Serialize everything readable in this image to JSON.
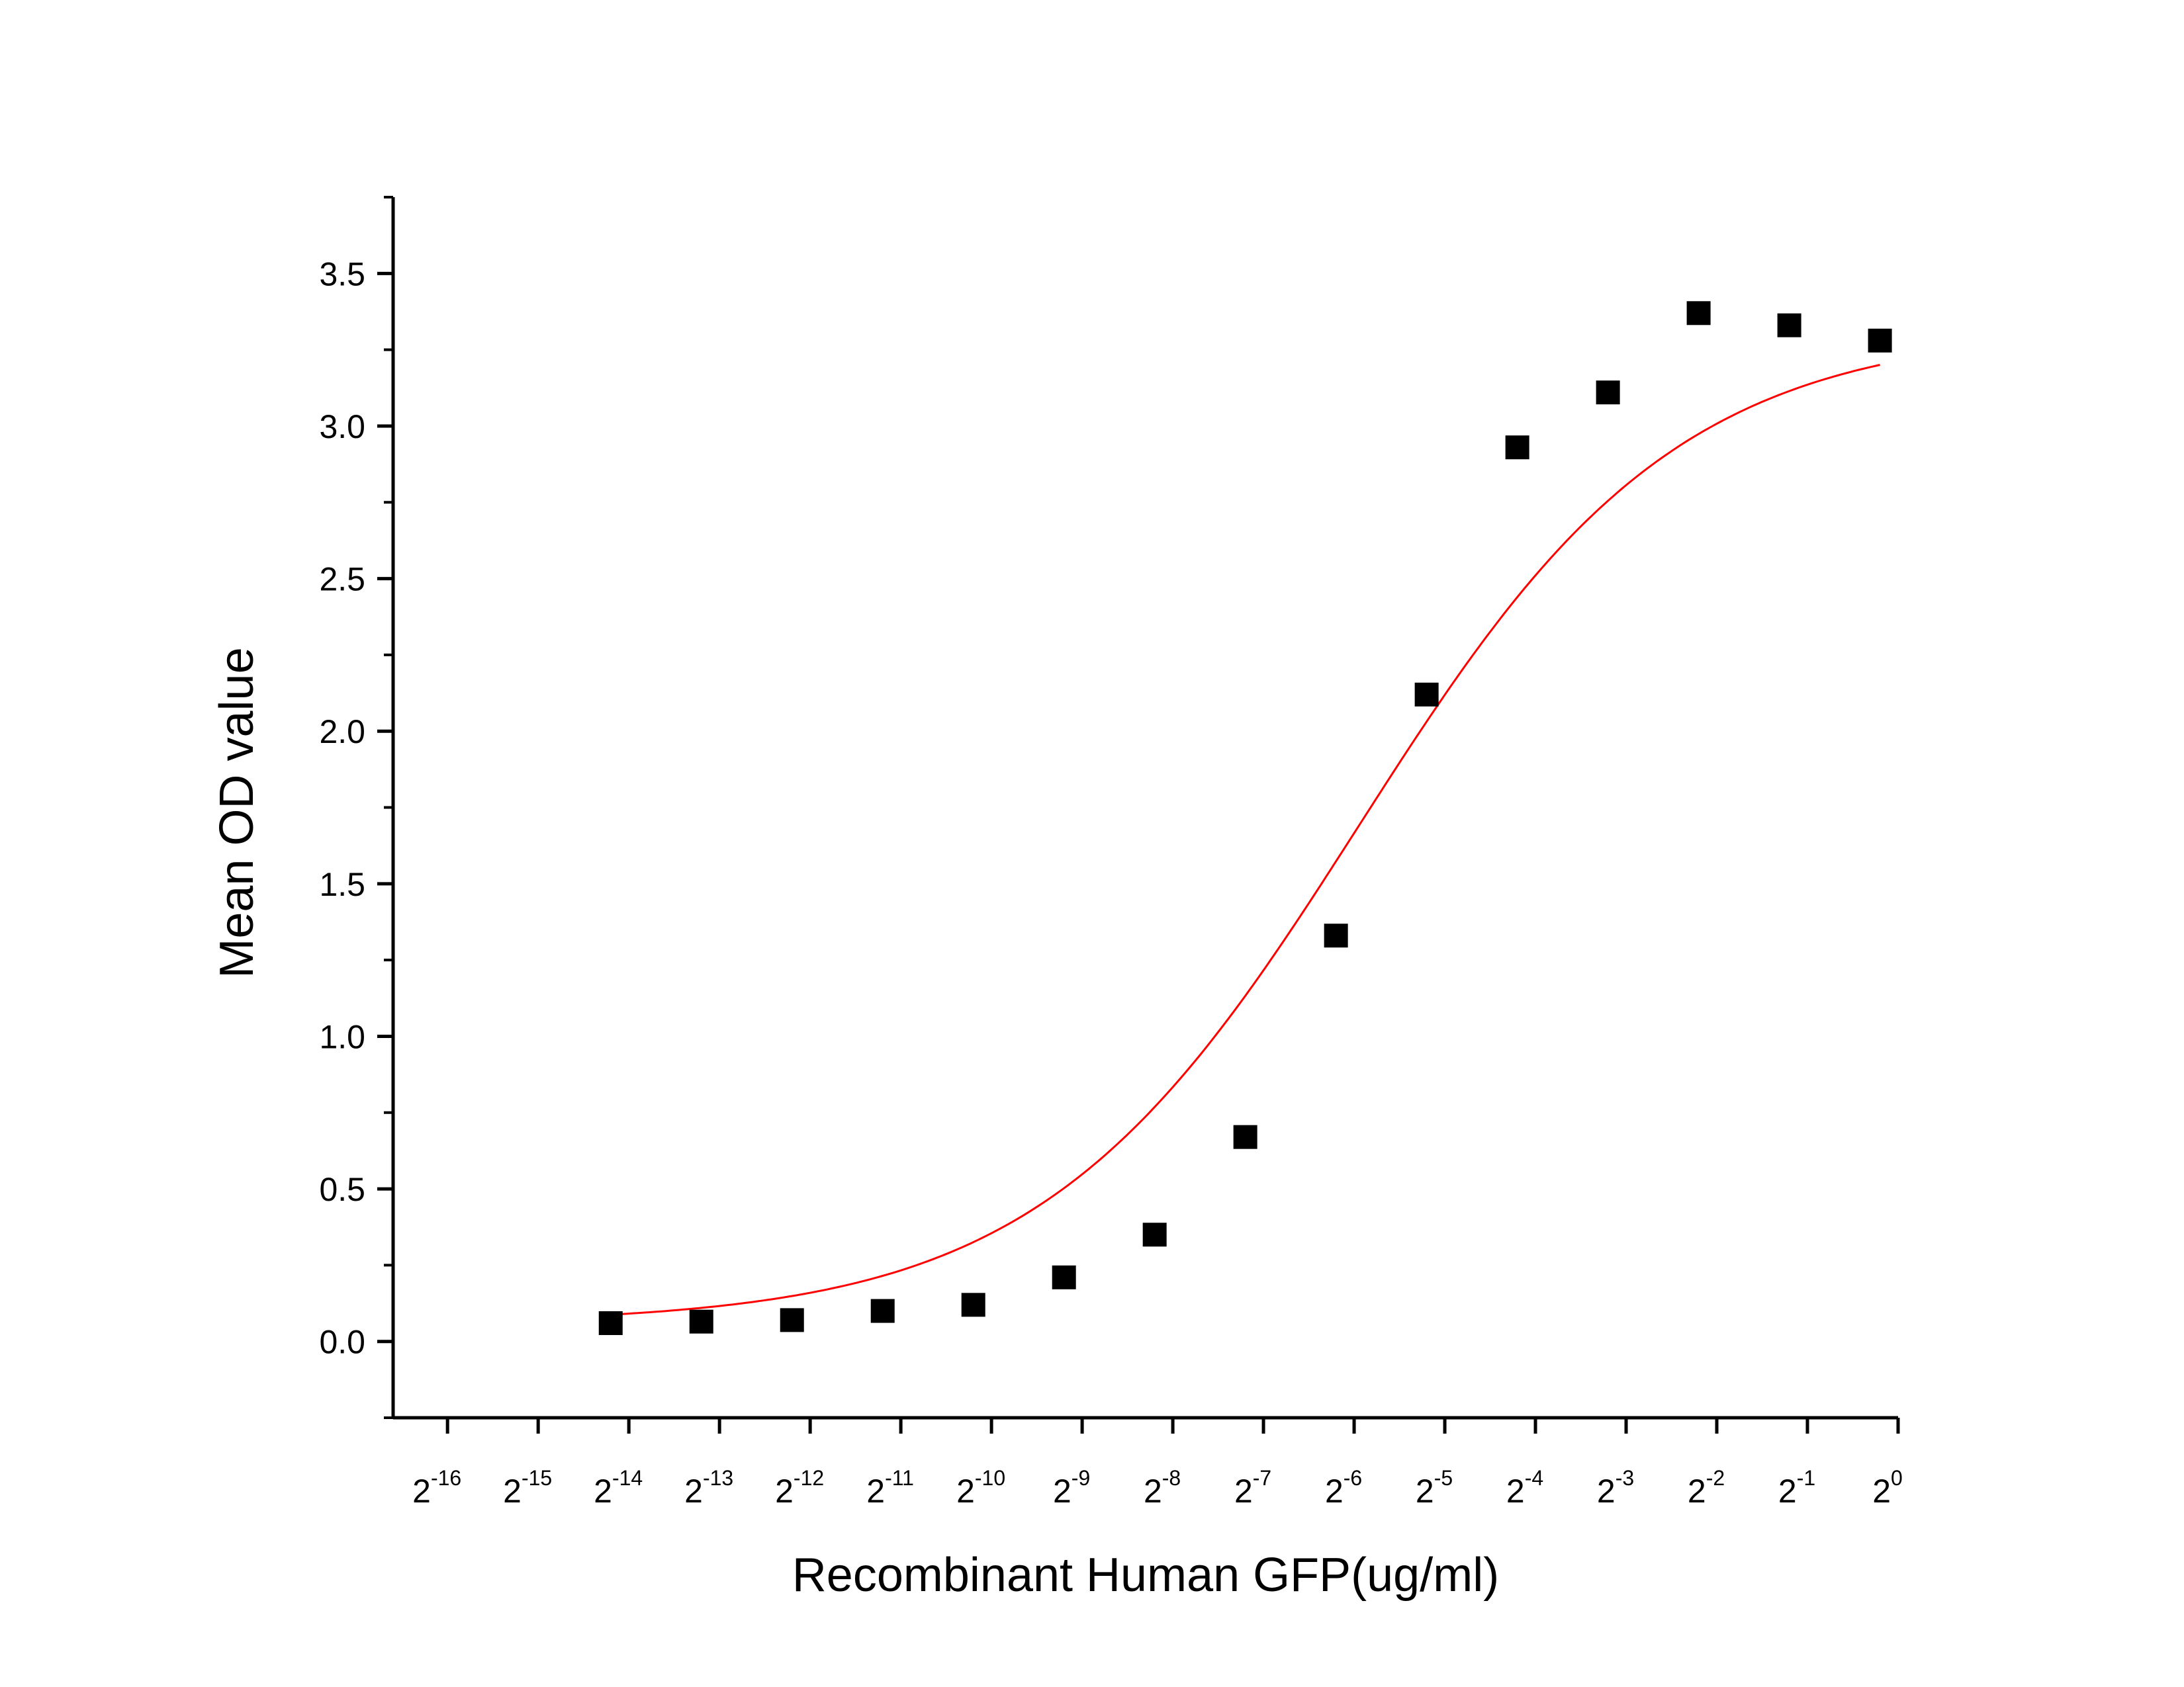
{
  "chart_data": {
    "type": "scatter",
    "xlabel": "Recombinant Human GFP(ug/ml)",
    "ylabel": "Mean OD value",
    "x_scale": "log2",
    "xlim": [
      -16.6,
      0
    ],
    "ylim": [
      -0.25,
      3.75
    ],
    "x_ticks": [
      -16,
      -15,
      -14,
      -13,
      -12,
      -11,
      -10,
      -9,
      -8,
      -7,
      -6,
      -5,
      -4,
      -3,
      -2,
      -1,
      0
    ],
    "x_tick_labels": [
      {
        "base": "2",
        "exp": "-16"
      },
      {
        "base": "2",
        "exp": "-15"
      },
      {
        "base": "2",
        "exp": "-14"
      },
      {
        "base": "2",
        "exp": "-13"
      },
      {
        "base": "2",
        "exp": "-12"
      },
      {
        "base": "2",
        "exp": "-11"
      },
      {
        "base": "2",
        "exp": "-10"
      },
      {
        "base": "2",
        "exp": "-9"
      },
      {
        "base": "2",
        "exp": "-8"
      },
      {
        "base": "2",
        "exp": "-7"
      },
      {
        "base": "2",
        "exp": "-6"
      },
      {
        "base": "2",
        "exp": "-5"
      },
      {
        "base": "2",
        "exp": "-4"
      },
      {
        "base": "2",
        "exp": "-3"
      },
      {
        "base": "2",
        "exp": "-2"
      },
      {
        "base": "2",
        "exp": "-1"
      },
      {
        "base": "2",
        "exp": "0"
      }
    ],
    "y_ticks": [
      0.0,
      0.5,
      1.0,
      1.5,
      2.0,
      2.5,
      3.0,
      3.5
    ],
    "y_tick_labels": [
      "0.0",
      "0.5",
      "1.0",
      "1.5",
      "2.0",
      "2.5",
      "3.0",
      "3.5"
    ],
    "grid": false,
    "legend": "none",
    "series": [
      {
        "type": "scatter",
        "marker": "square",
        "color": "#000000",
        "x_log2": [
          -14.2,
          -13.2,
          -12.2,
          -11.2,
          -10.2,
          -9.2,
          -8.2,
          -7.2,
          -6.2,
          -5.2,
          -4.2,
          -3.2,
          -2.2,
          -1.2,
          -0.2
        ],
        "y": [
          0.06,
          0.065,
          0.07,
          0.1,
          0.12,
          0.21,
          0.35,
          0.67,
          1.33,
          2.12,
          2.93,
          3.11,
          3.37,
          3.33,
          3.28
        ]
      },
      {
        "type": "line",
        "fit": "4PL",
        "color": "#ff0000",
        "x_log2_range": [
          -14.2,
          -0.2
        ],
        "bottom": 0.058,
        "top": 3.32,
        "ec50_log2": -5.95,
        "hill": 0.82
      }
    ]
  }
}
